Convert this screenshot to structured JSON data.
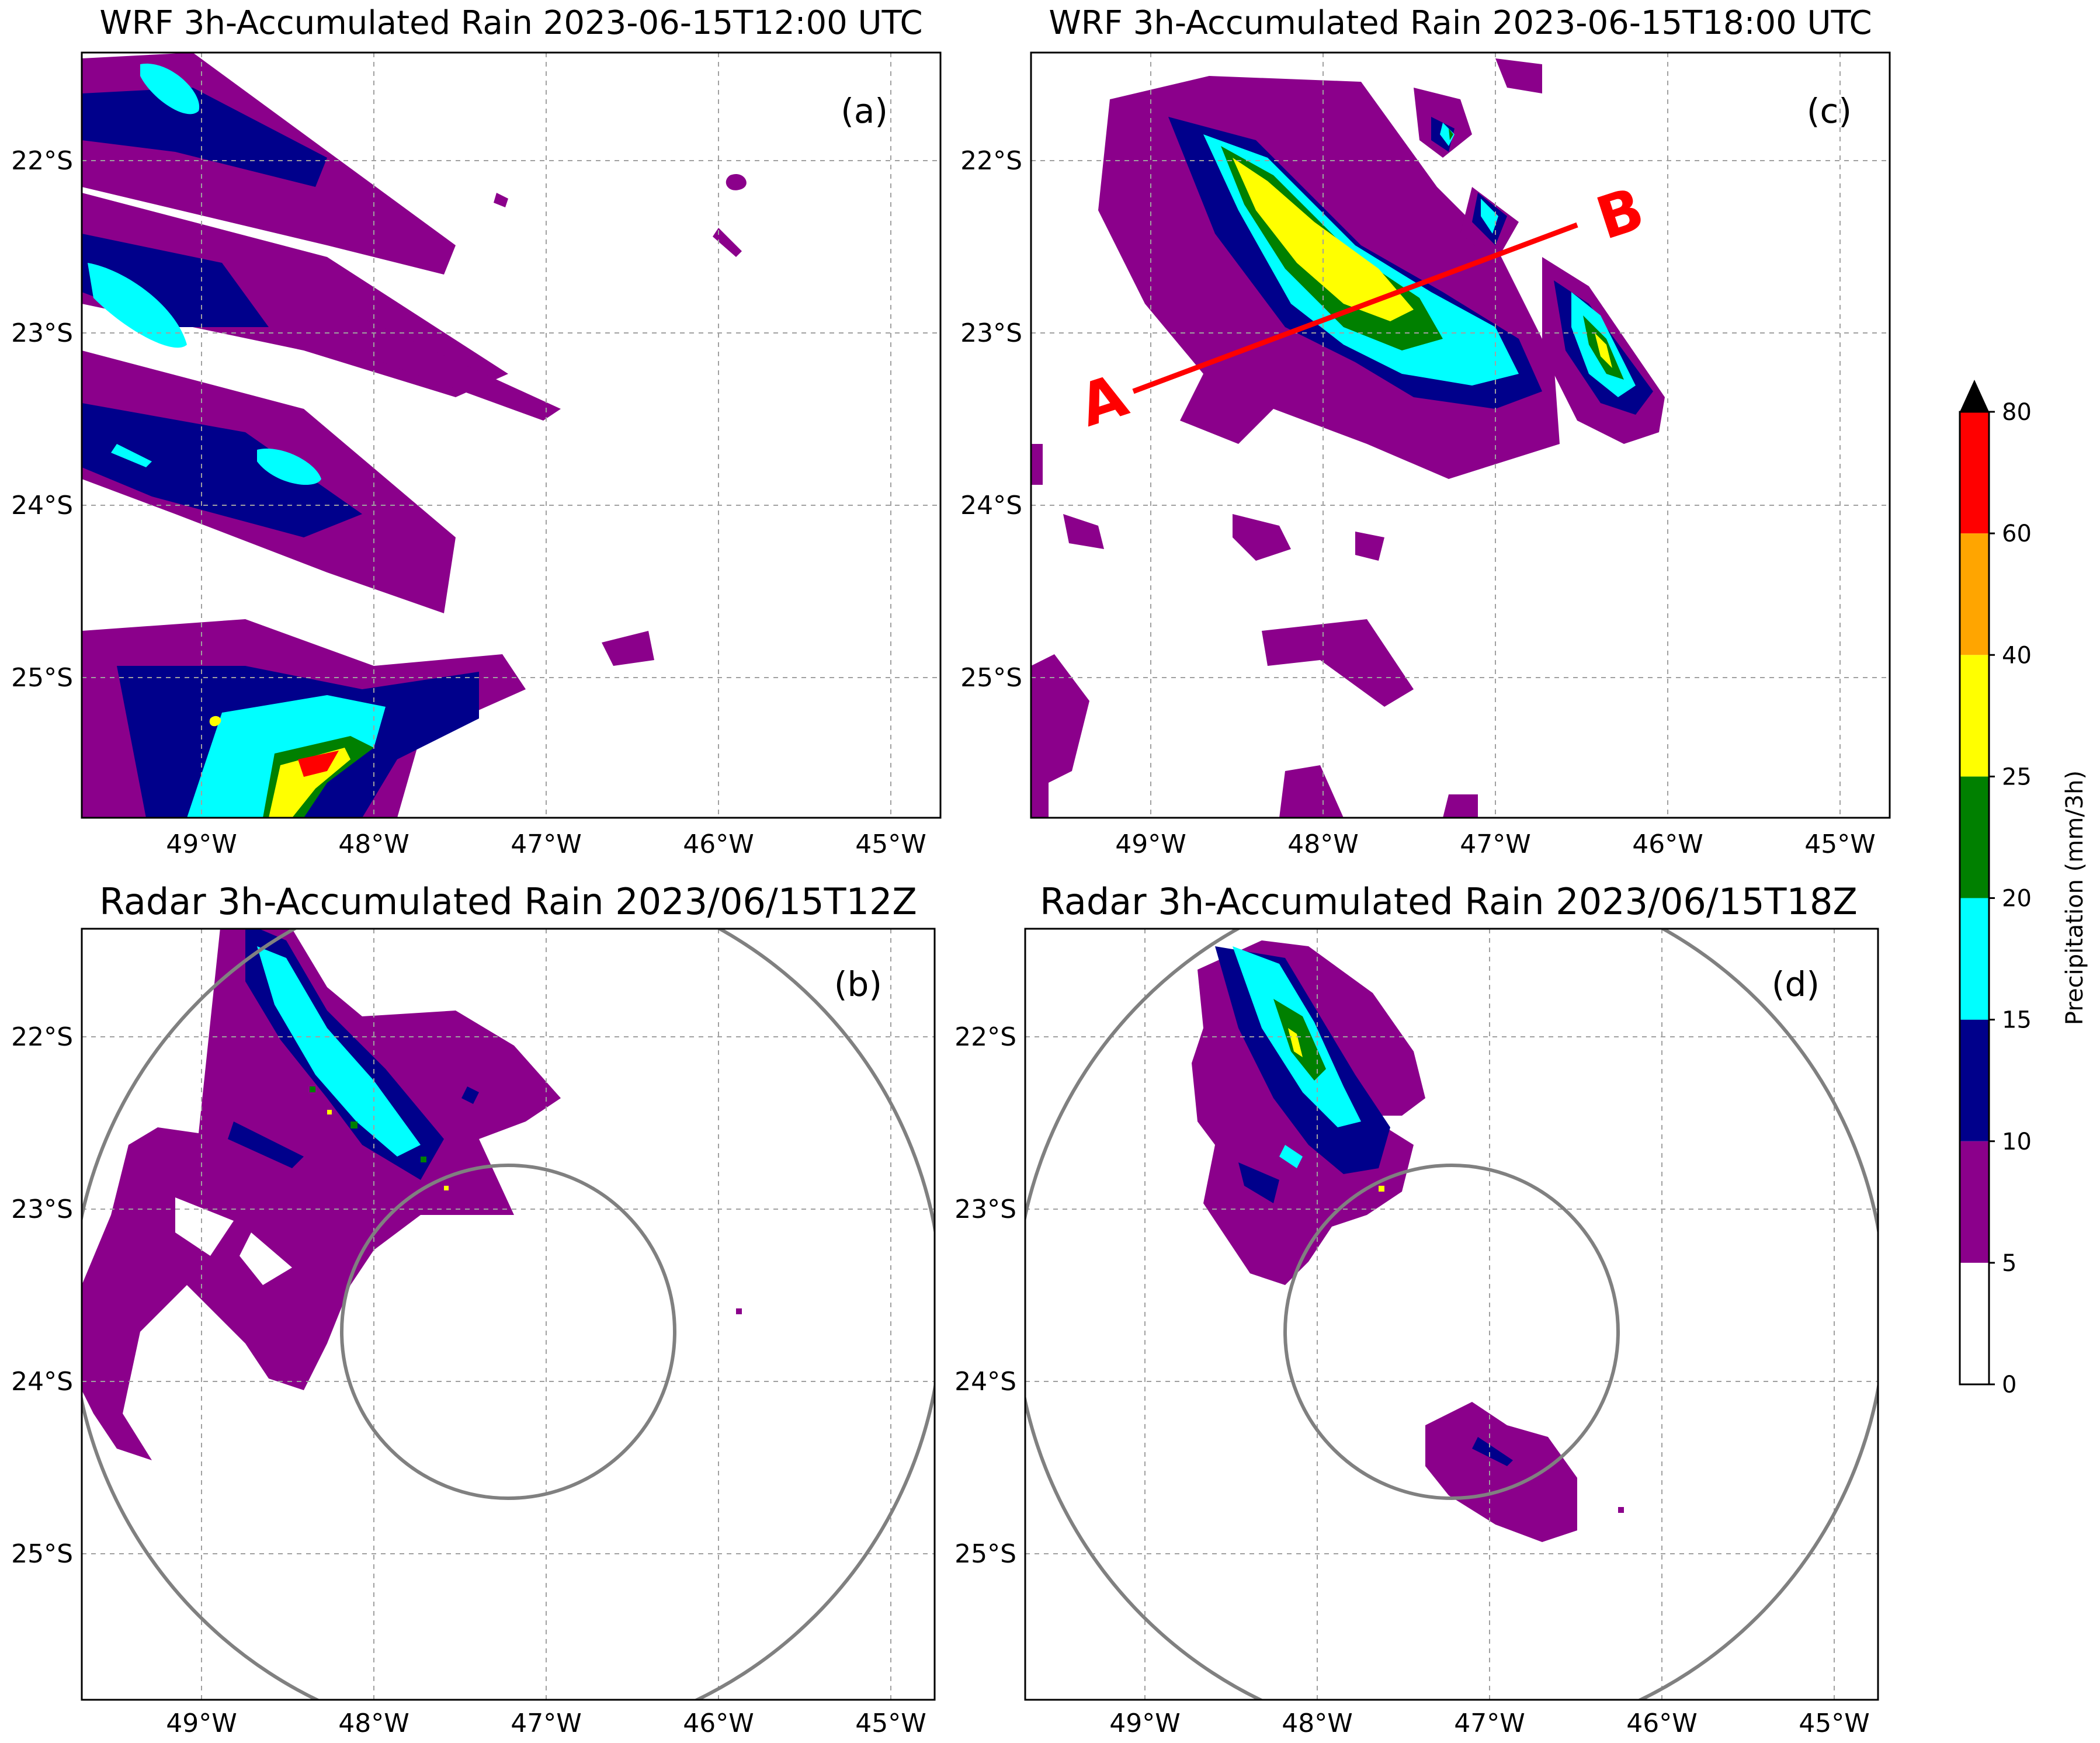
{
  "panels": [
    {
      "id": "a",
      "title": "WRF 3h-Accumulated Rain 2023-06-15T12:00 UTC",
      "label": "(a)",
      "source": "wrf"
    },
    {
      "id": "c",
      "title": "WRF 3h-Accumulated Rain 2023-06-15T18:00 UTC",
      "label": "(c)",
      "source": "wrf",
      "cross_section": {
        "start_label": "A",
        "end_label": "B",
        "color": "#ff0000"
      }
    },
    {
      "id": "b",
      "title": "Radar 3h-Accumulated Rain 2023/06/15T12Z",
      "label": "(b)",
      "source": "radar"
    },
    {
      "id": "d",
      "title": "Radar 3h-Accumulated Rain 2023/06/15T18Z",
      "label": "(d)",
      "source": "radar"
    }
  ],
  "map_axes": {
    "lon_ticks": [
      "49°W",
      "48°W",
      "47°W",
      "46°W",
      "45°W"
    ],
    "lat_ticks": [
      "22°S",
      "23°S",
      "24°S",
      "25°S"
    ],
    "gridlines": true
  },
  "colorbar": {
    "label": "Precipitation (mm/3h)",
    "levels": [
      "0",
      "5",
      "10",
      "15",
      "20",
      "25",
      "40",
      "60",
      "80"
    ],
    "colors": [
      "#ffffff",
      "#8b008b",
      "#00008b",
      "#00ffff",
      "#008000",
      "#ffff00",
      "#ffa500",
      "#ff0000"
    ],
    "extend_color": "#000000"
  },
  "palette": {
    "coastline": "#000000",
    "radar_ring": "#808080",
    "grid": "#a0a0a0"
  }
}
